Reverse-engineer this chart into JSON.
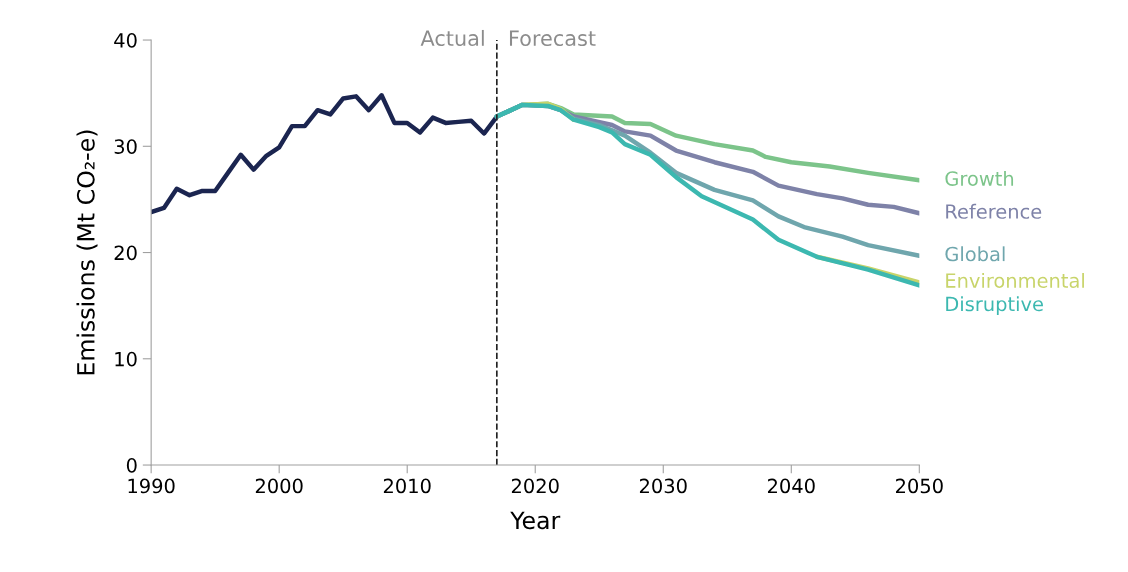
{
  "chart_data": {
    "type": "line",
    "xlabel": "Year",
    "ylabel": "Emissions (Mt CO₂-e)",
    "xlim": [
      1990,
      2050
    ],
    "xticks": [
      1990,
      2000,
      2010,
      2020,
      2030,
      2040,
      2050
    ],
    "ylim": [
      0,
      40
    ],
    "yticks": [
      0,
      10,
      20,
      30,
      40
    ],
    "grid": false,
    "legend": false,
    "marker": "none",
    "line_style": "solid",
    "ref_lines": [
      {
        "axis": "x",
        "value": 2017,
        "color": "#222222",
        "line_style": "dashed"
      }
    ],
    "annotations": [
      {
        "text": "Actual",
        "x": 2017,
        "y": 40
      },
      {
        "text": "Forecast",
        "x": 2017,
        "y": 40
      }
    ],
    "series": [
      {
        "color": "#1b2550",
        "x": [
          1990,
          1991,
          1992,
          1993,
          1994,
          1995,
          1996,
          1997,
          1998,
          1999,
          2000,
          2001,
          2002,
          2003,
          2004,
          2005,
          2006,
          2007,
          2008,
          2009,
          2010,
          2011,
          2012,
          2013,
          2014,
          2015,
          2016,
          2017
        ],
        "values": [
          23.8,
          24.2,
          26.0,
          25.4,
          25.8,
          25.8,
          27.5,
          29.2,
          27.8,
          29.1,
          29.9,
          31.9,
          31.9,
          33.4,
          33.0,
          34.5,
          34.7,
          33.4,
          34.8,
          32.2,
          32.2,
          31.3,
          32.7,
          32.2,
          32.3,
          32.4,
          31.2,
          32.8
        ]
      },
      {
        "name": "Growth",
        "color": "#7cc48a",
        "x": [
          2017,
          2019,
          2021,
          2022,
          2023,
          2026,
          2027,
          2029,
          2031,
          2034,
          2037,
          2038,
          2040,
          2043,
          2046,
          2050
        ],
        "values": [
          32.8,
          33.9,
          34.0,
          33.6,
          33.0,
          32.8,
          32.2,
          32.1,
          31.0,
          30.2,
          29.6,
          29.0,
          28.5,
          28.1,
          27.5,
          26.8
        ]
      },
      {
        "name": "Reference",
        "color": "#7e82a8",
        "x": [
          2017,
          2019,
          2021,
          2022,
          2023,
          2026,
          2027,
          2029,
          2031,
          2034,
          2037,
          2039,
          2042,
          2044,
          2046,
          2048,
          2050
        ],
        "values": [
          32.8,
          33.9,
          33.8,
          33.4,
          32.8,
          32.0,
          31.4,
          31.0,
          29.6,
          28.5,
          27.6,
          26.3,
          25.5,
          25.1,
          24.5,
          24.3,
          23.7
        ]
      },
      {
        "name": "Global",
        "color": "#6fa6ad",
        "x": [
          2017,
          2019,
          2021,
          2022,
          2023,
          2025,
          2027,
          2029,
          2031,
          2034,
          2037,
          2039,
          2041,
          2044,
          2046,
          2050
        ],
        "values": [
          32.8,
          33.9,
          33.8,
          33.4,
          32.6,
          32.0,
          31.0,
          29.4,
          27.5,
          25.9,
          24.9,
          23.4,
          22.4,
          21.5,
          20.7,
          19.7
        ]
      },
      {
        "name": "Environmental",
        "color": "#c8d46a",
        "x": [
          2019,
          2021,
          2022,
          2023,
          2025,
          2026,
          2027,
          2029,
          2031,
          2033,
          2037,
          2039,
          2042,
          2046,
          2050
        ],
        "values": [
          33.9,
          34.0,
          33.5,
          32.5,
          null,
          null,
          null,
          null,
          null,
          null,
          null,
          null,
          19.6,
          18.5,
          17.2
        ]
      },
      {
        "name": "Disruptive",
        "color": "#3cb8b0",
        "x": [
          2017,
          2019,
          2021,
          2022,
          2023,
          2025,
          2026,
          2027,
          2029,
          2031,
          2033,
          2037,
          2039,
          2042,
          2046,
          2050
        ],
        "values": [
          32.8,
          33.9,
          33.8,
          33.4,
          32.5,
          31.8,
          31.3,
          30.2,
          29.2,
          27.1,
          25.3,
          23.1,
          21.2,
          19.6,
          18.4,
          16.9
        ]
      }
    ]
  }
}
